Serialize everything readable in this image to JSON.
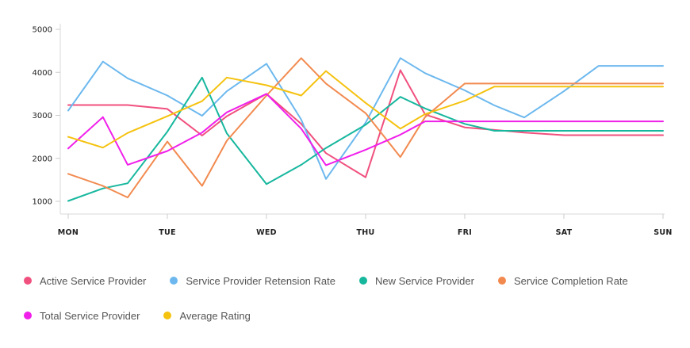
{
  "chart_data": {
    "type": "line",
    "categories": [
      "MON",
      "TUE",
      "WED",
      "THU",
      "FRI",
      "SAT",
      "SUN"
    ],
    "x": [
      0,
      0.35,
      0.6,
      1,
      1.35,
      1.6,
      2,
      2.35,
      2.6,
      3,
      3.35,
      3.6,
      4,
      4.3,
      4.6,
      5,
      5.35,
      5.6,
      6
    ],
    "ylim": [
      1000,
      5000
    ],
    "yticks": [
      1000,
      2000,
      3000,
      4000,
      5000
    ],
    "grid": false,
    "legend_position": "bottom",
    "title": "",
    "xlabel": "",
    "ylabel": "",
    "series": [
      {
        "name": "Active Service Provider",
        "color": "#f0507e",
        "values": [
          3240,
          3240,
          3240,
          3150,
          2530,
          2980,
          3500,
          2800,
          2120,
          1560,
          4050,
          3020,
          2720,
          2660,
          2600,
          2540,
          2540,
          2540,
          2540
        ]
      },
      {
        "name": "Service Provider Retension Rate",
        "color": "#6cb8ee",
        "values": [
          3110,
          4250,
          3860,
          3460,
          2990,
          3560,
          4200,
          2900,
          1520,
          2830,
          4330,
          3980,
          3580,
          3230,
          2950,
          3560,
          4150,
          4150,
          4150
        ]
      },
      {
        "name": "New Service Provider",
        "color": "#17b79e",
        "values": [
          1010,
          1300,
          1420,
          2620,
          3880,
          2580,
          1400,
          1850,
          2240,
          2780,
          3430,
          3160,
          2800,
          2640,
          2640,
          2640,
          2640,
          2640,
          2640
        ]
      },
      {
        "name": "Service Completion Rate",
        "color": "#f28a4f",
        "values": [
          1640,
          1360,
          1090,
          2390,
          1360,
          2410,
          3460,
          4330,
          3740,
          3050,
          2030,
          2960,
          3740,
          3740,
          3740,
          3740,
          3740,
          3740,
          3740
        ]
      },
      {
        "name": "Total Service Provider",
        "color": "#f01fea",
        "values": [
          2230,
          2960,
          1850,
          2170,
          2600,
          3070,
          3500,
          2690,
          1840,
          2200,
          2550,
          2860,
          2860,
          2860,
          2860,
          2860,
          2860,
          2860,
          2860
        ]
      },
      {
        "name": "Average Rating",
        "color": "#f5c20f",
        "values": [
          2500,
          2250,
          2590,
          2980,
          3330,
          3880,
          3700,
          3460,
          4030,
          3290,
          2690,
          3030,
          3340,
          3670,
          3670,
          3670,
          3670,
          3670,
          3670
        ]
      }
    ]
  }
}
